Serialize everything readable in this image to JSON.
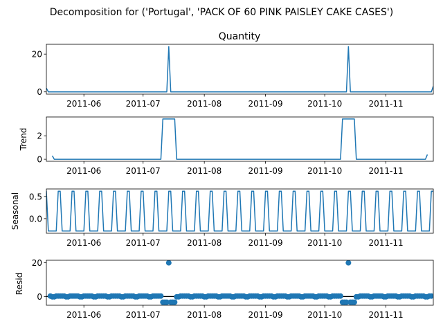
{
  "figure_title": "Decomposition for ('Portugal', 'PACK OF 60 PINK PAISLEY CAKE CASES')",
  "series_color": "#1f77b4",
  "chart_data": [
    {
      "type": "line",
      "title": "Quantity",
      "ylabel": "",
      "xlim": [
        "2011-05-13",
        "2011-11-25"
      ],
      "ylim": [
        -1.2,
        25.2
      ],
      "yticks": [
        0,
        20
      ],
      "x_tick_labels": [
        "2011-06",
        "2011-07",
        "2011-08",
        "2011-09",
        "2011-10",
        "2011-11"
      ],
      "series": [
        {
          "points": [
            [
              "2011-05-13",
              2.0
            ],
            [
              "2011-05-14",
              0
            ],
            [
              "2011-07-13",
              0
            ],
            [
              "2011-07-14",
              24
            ],
            [
              "2011-07-15",
              0
            ],
            [
              "2011-10-12",
              0
            ],
            [
              "2011-10-13",
              24
            ],
            [
              "2011-10-14",
              0
            ],
            [
              "2011-11-24",
              0
            ],
            [
              "2011-11-25",
              3.0
            ]
          ]
        }
      ]
    },
    {
      "type": "line",
      "title": "",
      "ylabel": "Trend",
      "xlim": [
        "2011-05-13",
        "2011-11-25"
      ],
      "ylim": [
        -0.17,
        3.6
      ],
      "yticks": [
        0,
        2
      ],
      "x_tick_labels": [
        "2011-06",
        "2011-07",
        "2011-08",
        "2011-09",
        "2011-10",
        "2011-11"
      ],
      "series": [
        {
          "points": [
            [
              "2011-05-16",
              0.3
            ],
            [
              "2011-05-17",
              0
            ],
            [
              "2011-07-10",
              0
            ],
            [
              "2011-07-11",
              3.43
            ],
            [
              "2011-07-17",
              3.43
            ],
            [
              "2011-07-18",
              0
            ],
            [
              "2011-10-09",
              0
            ],
            [
              "2011-10-10",
              3.43
            ],
            [
              "2011-10-16",
              3.43
            ],
            [
              "2011-10-17",
              0
            ],
            [
              "2011-11-21",
              0
            ],
            [
              "2011-11-22",
              0.4
            ]
          ]
        }
      ]
    },
    {
      "type": "line",
      "title": "",
      "ylabel": "Seasonal",
      "xlim": [
        "2011-05-13",
        "2011-11-25"
      ],
      "ylim": [
        -0.33,
        0.67
      ],
      "yticks": [
        0.0,
        0.5
      ],
      "ytick_labels": [
        "0.0",
        "0.5"
      ],
      "x_tick_labels": [
        "2011-06",
        "2011-07",
        "2011-08",
        "2011-09",
        "2011-10",
        "2011-11"
      ],
      "period_days": 7,
      "series": [
        {
          "high": 0.62,
          "low": -0.28,
          "first_peak": "2011-05-19"
        }
      ]
    },
    {
      "type": "scatter",
      "title": "",
      "ylabel": "Resid",
      "xlim": [
        "2011-05-13",
        "2011-11-25"
      ],
      "ylim": [
        -5.2,
        21.5
      ],
      "yticks": [
        0,
        20
      ],
      "x_tick_labels": [
        "2011-06",
        "2011-07",
        "2011-08",
        "2011-09",
        "2011-10",
        "2011-11"
      ],
      "series": [
        {
          "start": "2011-05-15",
          "end": "2011-11-24",
          "baseline": 0.25,
          "season_offset": -0.45,
          "outliers": [
            [
              "2011-07-11",
              -3.4
            ],
            [
              "2011-07-12",
              -3.4
            ],
            [
              "2011-07-13",
              -3.4
            ],
            [
              "2011-07-14",
              20.0
            ],
            [
              "2011-07-15",
              -3.4
            ],
            [
              "2011-07-16",
              -3.4
            ],
            [
              "2011-07-17",
              -3.4
            ],
            [
              "2011-10-10",
              -3.4
            ],
            [
              "2011-10-11",
              -3.4
            ],
            [
              "2011-10-12",
              -3.4
            ],
            [
              "2011-10-13",
              20.0
            ],
            [
              "2011-10-14",
              -3.4
            ],
            [
              "2011-10-15",
              -3.4
            ],
            [
              "2011-10-16",
              -3.4
            ]
          ]
        }
      ]
    }
  ]
}
